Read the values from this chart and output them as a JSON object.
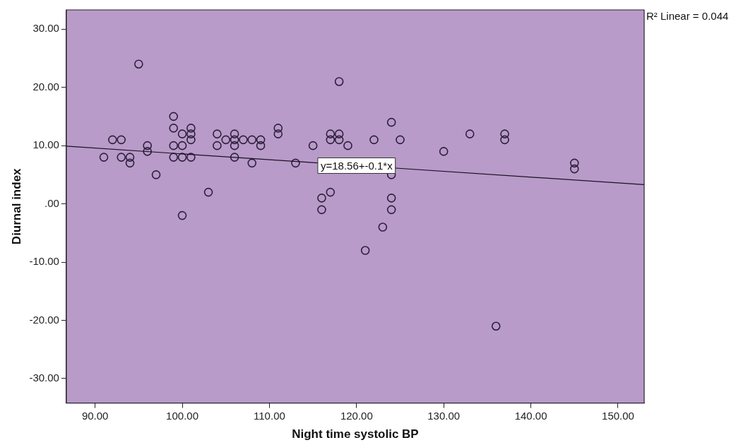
{
  "chart_data": {
    "type": "scatter",
    "xlabel": "Night time systolic BP",
    "ylabel": "Diurnal index",
    "xlim": [
      86.7,
      153
    ],
    "ylim": [
      -34.2,
      33.3
    ],
    "xticks": [
      {
        "value": 90,
        "label": "90.00"
      },
      {
        "value": 100,
        "label": "100.00"
      },
      {
        "value": 110,
        "label": "110.00"
      },
      {
        "value": 120,
        "label": "120.00"
      },
      {
        "value": 130,
        "label": "130.00"
      },
      {
        "value": 140,
        "label": "140.00"
      },
      {
        "value": 150,
        "label": "150.00"
      }
    ],
    "yticks": [
      {
        "value": -30,
        "label": "-30.00"
      },
      {
        "value": -20,
        "label": "-20.00"
      },
      {
        "value": -10,
        "label": "-10.00"
      },
      {
        "value": 0,
        "label": ".00"
      },
      {
        "value": 10,
        "label": "10.00"
      },
      {
        "value": 20,
        "label": "20.00"
      },
      {
        "value": 30,
        "label": "30.00"
      }
    ],
    "grid": false,
    "legend": false,
    "series": [
      {
        "color": "#2e1f3d",
        "marker": "circle",
        "x": [
          95,
          99,
          99,
          92,
          93,
          91,
          93,
          94,
          94,
          96,
          96,
          97,
          99,
          99,
          100,
          100,
          100,
          101,
          101,
          101,
          101,
          100,
          103,
          104,
          104,
          105,
          106,
          106,
          106,
          106,
          107,
          108,
          108,
          109,
          109,
          111,
          111,
          113,
          118,
          124,
          117,
          118,
          117,
          118,
          115,
          119,
          122,
          125,
          133,
          137,
          137,
          130,
          145,
          145,
          124,
          117,
          116,
          116,
          124,
          124,
          123,
          121,
          136
        ],
        "values": [
          24,
          15,
          13,
          11,
          11,
          8,
          8,
          8,
          7,
          10,
          9,
          5,
          10,
          8,
          12,
          10,
          8,
          13,
          12,
          11,
          8,
          -2,
          2,
          12,
          10,
          11,
          12,
          11,
          10,
          8,
          11,
          11,
          7,
          11,
          10,
          13,
          12,
          7,
          21,
          14,
          12,
          12,
          11,
          11,
          10,
          10,
          11,
          11,
          12,
          12,
          11,
          9,
          7,
          6,
          5,
          2,
          1,
          -1,
          1,
          -1,
          -4,
          -8,
          -21
        ]
      },
      {
        "type": "line",
        "color": "#1a1024",
        "x": [
          86.7,
          153
        ],
        "values": [
          9.9,
          3.3
        ],
        "line_style": "solid",
        "marker": "none"
      }
    ],
    "annotations": [
      {
        "text": "y=18.56+-0.1*x",
        "x": 120,
        "y": 6.56
      },
      "R² Linear = 0.044"
    ]
  }
}
